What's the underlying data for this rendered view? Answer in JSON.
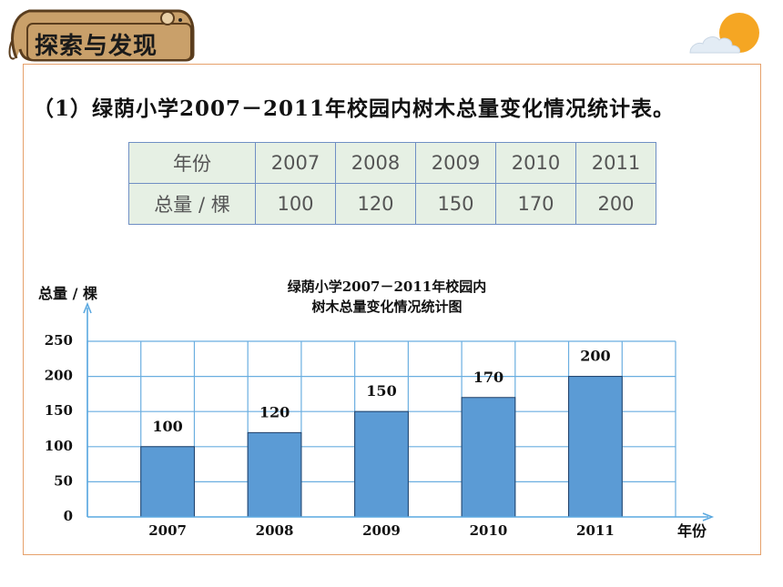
{
  "header": {
    "title": "探索与发现"
  },
  "section": {
    "title": "（1）绿荫小学2007－2011年校园内树木总量变化情况统计表。"
  },
  "table": {
    "row1_label": "年份",
    "row2_label": "总量 / 棵",
    "years": [
      "2007",
      "2008",
      "2009",
      "2010",
      "2011"
    ],
    "totals": [
      "100",
      "120",
      "150",
      "170",
      "200"
    ]
  },
  "chart_data": {
    "type": "bar",
    "title_line1": "绿荫小学2007－2011年校园内",
    "title_line2": "树木总量变化情况统计图",
    "ylabel": "总量 / 棵",
    "xlabel": "年份",
    "categories": [
      "2007",
      "2008",
      "2009",
      "2010",
      "2011"
    ],
    "values": [
      100,
      120,
      150,
      170,
      200
    ],
    "yticks": [
      "0",
      "50",
      "100",
      "150",
      "200",
      "250"
    ],
    "ylim": [
      0,
      250
    ],
    "bar_color": "#5b9bd5",
    "grid": true
  }
}
